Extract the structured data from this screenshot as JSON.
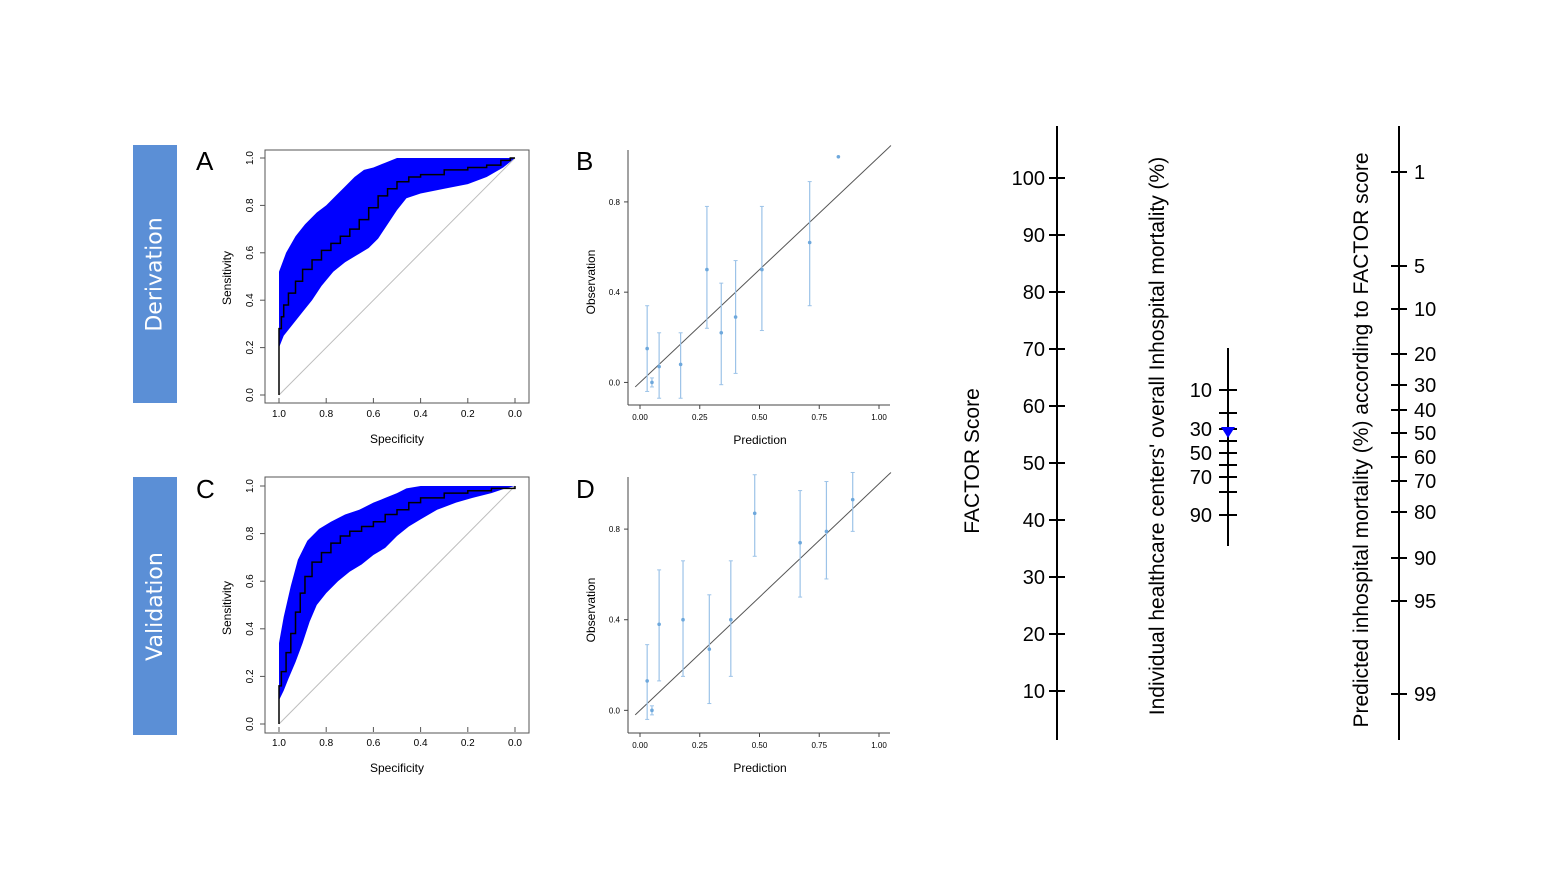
{
  "rows": [
    {
      "label": "Derivation"
    },
    {
      "label": "Validation"
    }
  ],
  "chart_data": [
    {
      "id": "A",
      "type": "line",
      "panel_label": "A",
      "xlabel": "Specificity",
      "ylabel": "Sensitivity",
      "x_reversed": true,
      "xlim": [
        1.0,
        0.0
      ],
      "ylim": [
        0.0,
        1.0
      ],
      "xticks": [
        "1.0",
        "0.8",
        "0.6",
        "0.4",
        "0.2",
        "0.0"
      ],
      "yticks": [
        "0.0",
        "0.2",
        "0.4",
        "0.6",
        "0.8",
        "1.0"
      ],
      "band_color": "#0000ff",
      "roc": [
        [
          1.0,
          0.0
        ],
        [
          1.0,
          0.28
        ],
        [
          0.99,
          0.33
        ],
        [
          0.98,
          0.38
        ],
        [
          0.96,
          0.43
        ],
        [
          0.93,
          0.48
        ],
        [
          0.9,
          0.53
        ],
        [
          0.86,
          0.57
        ],
        [
          0.82,
          0.61
        ],
        [
          0.78,
          0.64
        ],
        [
          0.74,
          0.67
        ],
        [
          0.7,
          0.7
        ],
        [
          0.66,
          0.74
        ],
        [
          0.62,
          0.79
        ],
        [
          0.58,
          0.84
        ],
        [
          0.54,
          0.87
        ],
        [
          0.5,
          0.9
        ],
        [
          0.45,
          0.92
        ],
        [
          0.4,
          0.93
        ],
        [
          0.3,
          0.95
        ],
        [
          0.2,
          0.96
        ],
        [
          0.12,
          0.97
        ],
        [
          0.06,
          0.99
        ],
        [
          0.02,
          1.0
        ],
        [
          0.0,
          1.0
        ]
      ],
      "band_upper": [
        [
          1.0,
          0.0
        ],
        [
          1.0,
          0.52
        ],
        [
          0.97,
          0.6
        ],
        [
          0.93,
          0.67
        ],
        [
          0.89,
          0.72
        ],
        [
          0.84,
          0.77
        ],
        [
          0.8,
          0.8
        ],
        [
          0.76,
          0.84
        ],
        [
          0.72,
          0.88
        ],
        [
          0.68,
          0.92
        ],
        [
          0.64,
          0.95
        ],
        [
          0.6,
          0.96
        ],
        [
          0.55,
          0.98
        ],
        [
          0.5,
          1.0
        ],
        [
          0.0,
          1.0
        ]
      ],
      "band_lower": [
        [
          1.0,
          0.0
        ],
        [
          1.0,
          0.2
        ],
        [
          0.98,
          0.25
        ],
        [
          0.94,
          0.3
        ],
        [
          0.9,
          0.35
        ],
        [
          0.86,
          0.4
        ],
        [
          0.82,
          0.46
        ],
        [
          0.77,
          0.52
        ],
        [
          0.72,
          0.56
        ],
        [
          0.67,
          0.59
        ],
        [
          0.62,
          0.62
        ],
        [
          0.58,
          0.66
        ],
        [
          0.54,
          0.72
        ],
        [
          0.5,
          0.78
        ],
        [
          0.46,
          0.83
        ],
        [
          0.4,
          0.85
        ],
        [
          0.3,
          0.87
        ],
        [
          0.2,
          0.89
        ],
        [
          0.12,
          0.92
        ],
        [
          0.05,
          0.96
        ],
        [
          0.0,
          1.0
        ]
      ]
    },
    {
      "id": "B",
      "type": "scatter",
      "panel_label": "B",
      "xlabel": "Prediction",
      "ylabel": "Observation",
      "xlim": [
        0.0,
        1.0
      ],
      "ylim": [
        -0.1,
        1.03
      ],
      "xticks": [
        "0.00",
        "0.25",
        "0.50",
        "0.75",
        "1.00"
      ],
      "yticks": [
        "0.0",
        "0.4",
        "0.8"
      ],
      "points": [
        {
          "x": 0.03,
          "y": 0.15,
          "lo": -0.04,
          "hi": 0.34
        },
        {
          "x": 0.05,
          "y": 0.0,
          "lo": -0.02,
          "hi": 0.02
        },
        {
          "x": 0.08,
          "y": 0.07,
          "lo": -0.07,
          "hi": 0.22
        },
        {
          "x": 0.17,
          "y": 0.08,
          "lo": -0.07,
          "hi": 0.22
        },
        {
          "x": 0.28,
          "y": 0.5,
          "lo": 0.24,
          "hi": 0.78
        },
        {
          "x": 0.34,
          "y": 0.22,
          "lo": -0.01,
          "hi": 0.44
        },
        {
          "x": 0.4,
          "y": 0.29,
          "lo": 0.04,
          "hi": 0.54
        },
        {
          "x": 0.51,
          "y": 0.5,
          "lo": 0.23,
          "hi": 0.78
        },
        {
          "x": 0.71,
          "y": 0.62,
          "lo": 0.34,
          "hi": 0.89
        },
        {
          "x": 0.83,
          "y": 1.0,
          "lo": 1.0,
          "hi": 1.0
        }
      ]
    },
    {
      "id": "C",
      "type": "line",
      "panel_label": "C",
      "xlabel": "Specificity",
      "ylabel": "Sensitivity",
      "x_reversed": true,
      "xlim": [
        1.0,
        0.0
      ],
      "ylim": [
        0.0,
        1.0
      ],
      "xticks": [
        "1.0",
        "0.8",
        "0.6",
        "0.4",
        "0.2",
        "0.0"
      ],
      "yticks": [
        "0.0",
        "0.2",
        "0.4",
        "0.6",
        "0.8",
        "1.0"
      ],
      "band_color": "#0000ff",
      "roc": [
        [
          1.0,
          0.0
        ],
        [
          1.0,
          0.16
        ],
        [
          0.99,
          0.22
        ],
        [
          0.97,
          0.3
        ],
        [
          0.95,
          0.38
        ],
        [
          0.93,
          0.47
        ],
        [
          0.91,
          0.55
        ],
        [
          0.89,
          0.62
        ],
        [
          0.86,
          0.68
        ],
        [
          0.82,
          0.72
        ],
        [
          0.78,
          0.76
        ],
        [
          0.74,
          0.79
        ],
        [
          0.7,
          0.81
        ],
        [
          0.65,
          0.83
        ],
        [
          0.6,
          0.85
        ],
        [
          0.55,
          0.88
        ],
        [
          0.5,
          0.9
        ],
        [
          0.45,
          0.93
        ],
        [
          0.4,
          0.95
        ],
        [
          0.3,
          0.97
        ],
        [
          0.2,
          0.98
        ],
        [
          0.1,
          0.99
        ],
        [
          0.0,
          1.0
        ]
      ],
      "band_upper": [
        [
          1.0,
          0.0
        ],
        [
          1.0,
          0.34
        ],
        [
          0.98,
          0.45
        ],
        [
          0.95,
          0.58
        ],
        [
          0.92,
          0.69
        ],
        [
          0.88,
          0.77
        ],
        [
          0.83,
          0.82
        ],
        [
          0.78,
          0.85
        ],
        [
          0.72,
          0.88
        ],
        [
          0.66,
          0.9
        ],
        [
          0.6,
          0.93
        ],
        [
          0.55,
          0.95
        ],
        [
          0.5,
          0.97
        ],
        [
          0.46,
          0.99
        ],
        [
          0.4,
          1.0
        ],
        [
          0.0,
          1.0
        ]
      ],
      "band_lower": [
        [
          1.0,
          0.0
        ],
        [
          1.0,
          0.1
        ],
        [
          0.98,
          0.14
        ],
        [
          0.96,
          0.19
        ],
        [
          0.93,
          0.26
        ],
        [
          0.9,
          0.34
        ],
        [
          0.87,
          0.43
        ],
        [
          0.84,
          0.5
        ],
        [
          0.8,
          0.55
        ],
        [
          0.75,
          0.6
        ],
        [
          0.7,
          0.64
        ],
        [
          0.65,
          0.67
        ],
        [
          0.6,
          0.71
        ],
        [
          0.55,
          0.74
        ],
        [
          0.5,
          0.79
        ],
        [
          0.45,
          0.83
        ],
        [
          0.4,
          0.86
        ],
        [
          0.33,
          0.9
        ],
        [
          0.25,
          0.93
        ],
        [
          0.18,
          0.95
        ],
        [
          0.1,
          0.97
        ],
        [
          0.04,
          0.99
        ],
        [
          0.0,
          1.0
        ]
      ]
    },
    {
      "id": "D",
      "type": "scatter",
      "panel_label": "D",
      "xlabel": "Prediction",
      "ylabel": "Observation",
      "xlim": [
        0.0,
        1.0
      ],
      "ylim": [
        -0.1,
        1.03
      ],
      "xticks": [
        "0.00",
        "0.25",
        "0.50",
        "0.75",
        "1.00"
      ],
      "yticks": [
        "0.0",
        "0.4",
        "0.8"
      ],
      "points": [
        {
          "x": 0.03,
          "y": 0.13,
          "lo": -0.04,
          "hi": 0.29
        },
        {
          "x": 0.05,
          "y": 0.0,
          "lo": -0.02,
          "hi": 0.02
        },
        {
          "x": 0.08,
          "y": 0.38,
          "lo": 0.13,
          "hi": 0.62
        },
        {
          "x": 0.18,
          "y": 0.4,
          "lo": 0.15,
          "hi": 0.66
        },
        {
          "x": 0.29,
          "y": 0.27,
          "lo": 0.03,
          "hi": 0.51
        },
        {
          "x": 0.38,
          "y": 0.4,
          "lo": 0.15,
          "hi": 0.66
        },
        {
          "x": 0.48,
          "y": 0.87,
          "lo": 0.68,
          "hi": 1.04
        },
        {
          "x": 0.67,
          "y": 0.74,
          "lo": 0.5,
          "hi": 0.97
        },
        {
          "x": 0.78,
          "y": 0.79,
          "lo": 0.58,
          "hi": 1.01
        },
        {
          "x": 0.89,
          "y": 0.93,
          "lo": 0.79,
          "hi": 1.05
        }
      ]
    }
  ],
  "nomogram": {
    "factor_title": "FACTOR Score",
    "factor_ticks": [
      "100",
      "90",
      "80",
      "70",
      "60",
      "50",
      "40",
      "30",
      "20",
      "10"
    ],
    "center_title": "Individual healthcare centers' overall Inhospital mortality (%)",
    "center_ticks": [
      "10",
      "30",
      "50",
      "70",
      "90"
    ],
    "center_minor_count": 8,
    "center_marker_value": 30,
    "center_marker_color": "#0000ff",
    "predicted_title": "Predicted inhospital mortality (%) according to FACTOR score",
    "predicted_ticks": [
      "1",
      "5",
      "10",
      "20",
      "30",
      "40",
      "50",
      "60",
      "70",
      "80",
      "90",
      "95",
      "99"
    ]
  }
}
